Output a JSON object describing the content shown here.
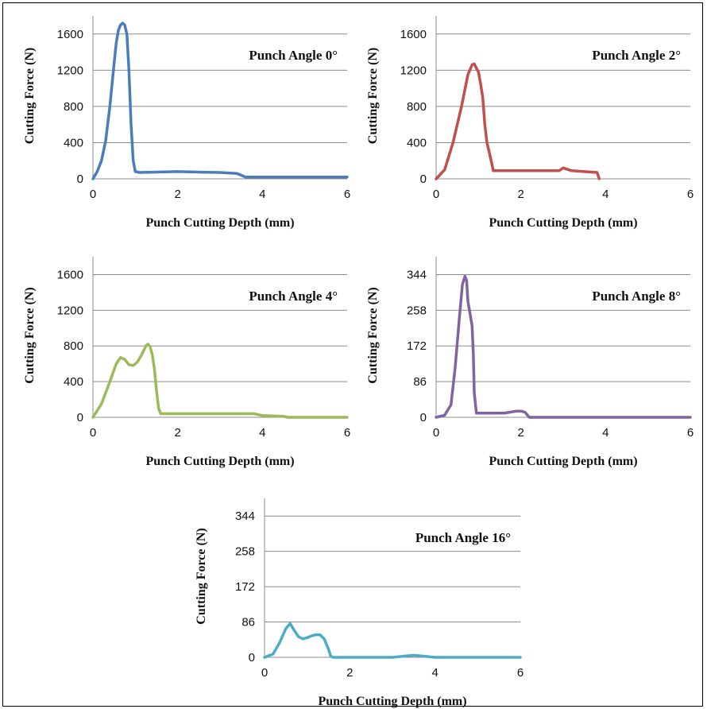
{
  "chart_data": [
    {
      "type": "line",
      "title": "Punch Angle 0°",
      "xlabel": "Punch Cutting Depth (mm)",
      "ylabel": "Cutting Force (N)",
      "xlim": [
        0,
        6
      ],
      "ylim": [
        0,
        1800
      ],
      "xticks": [
        0,
        2,
        4,
        6
      ],
      "yticks": [
        0,
        400,
        800,
        1200,
        1600
      ],
      "color": "#4a7ebb",
      "series": [
        {
          "x": [
            0,
            0.1,
            0.2,
            0.3,
            0.4,
            0.5,
            0.55,
            0.6,
            0.65,
            0.7,
            0.75,
            0.8,
            0.85,
            0.9,
            0.95,
            1.0,
            1.1,
            1.5,
            2.0,
            2.5,
            3.0,
            3.4,
            3.6,
            4.0,
            5.0,
            6.0
          ],
          "y": [
            0,
            80,
            200,
            420,
            800,
            1280,
            1500,
            1640,
            1700,
            1720,
            1700,
            1600,
            1200,
            600,
            200,
            80,
            70,
            75,
            80,
            75,
            70,
            60,
            20,
            20,
            20,
            20
          ]
        }
      ]
    },
    {
      "type": "line",
      "title": "Punch Angle 2°",
      "xlabel": "Punch Cutting Depth (mm)",
      "ylabel": "Cutting Force (N)",
      "xlim": [
        0,
        6
      ],
      "ylim": [
        0,
        1800
      ],
      "xticks": [
        0,
        2,
        4,
        6
      ],
      "yticks": [
        0,
        400,
        800,
        1200,
        1600
      ],
      "color": "#c0504d",
      "series": [
        {
          "x": [
            0,
            0.2,
            0.4,
            0.6,
            0.75,
            0.85,
            0.9,
            1.0,
            1.05,
            1.1,
            1.15,
            1.2,
            1.25,
            1.3,
            1.35,
            1.5,
            2.0,
            2.5,
            2.9,
            3.0,
            3.2,
            3.5,
            3.8,
            3.85
          ],
          "y": [
            0,
            100,
            400,
            800,
            1150,
            1260,
            1270,
            1180,
            1050,
            900,
            600,
            400,
            300,
            200,
            90,
            90,
            90,
            90,
            90,
            120,
            90,
            80,
            70,
            0
          ]
        }
      ]
    },
    {
      "type": "line",
      "title": "Punch Angle 4°",
      "xlabel": "Punch Cutting Depth (mm)",
      "ylabel": "Cutting Force (N)",
      "xlim": [
        0,
        6
      ],
      "ylim": [
        0,
        1800
      ],
      "xticks": [
        0,
        2,
        4,
        6
      ],
      "yticks": [
        0,
        400,
        800,
        1200,
        1600
      ],
      "color": "#9bbb59",
      "series": [
        {
          "x": [
            0,
            0.2,
            0.4,
            0.55,
            0.65,
            0.75,
            0.85,
            0.95,
            1.05,
            1.15,
            1.25,
            1.3,
            1.35,
            1.4,
            1.45,
            1.5,
            1.55,
            1.6,
            2.0,
            3.0,
            3.8,
            4.0,
            4.5,
            4.6,
            6.0
          ],
          "y": [
            0,
            150,
            400,
            600,
            670,
            650,
            590,
            580,
            620,
            700,
            800,
            820,
            790,
            700,
            550,
            300,
            100,
            40,
            40,
            40,
            40,
            20,
            10,
            0,
            0
          ]
        }
      ]
    },
    {
      "type": "line",
      "title": "Punch Angle 8°",
      "xlabel": "Punch Cutting Depth (mm)",
      "ylabel": "Cutting Force (N)",
      "xlim": [
        0,
        6
      ],
      "ylim": [
        0,
        387
      ],
      "xticks": [
        0,
        2,
        4,
        6
      ],
      "yticks": [
        0,
        86,
        172,
        258,
        344
      ],
      "color": "#8064a2",
      "series": [
        {
          "x": [
            0,
            0.2,
            0.35,
            0.45,
            0.55,
            0.62,
            0.68,
            0.72,
            0.75,
            0.8,
            0.85,
            0.88,
            0.9,
            0.95,
            1.0,
            1.2,
            1.6,
            1.9,
            2.0,
            2.1,
            2.2,
            6.0
          ],
          "y": [
            0,
            5,
            30,
            120,
            240,
            320,
            340,
            330,
            280,
            250,
            220,
            150,
            60,
            10,
            10,
            10,
            10,
            15,
            15,
            12,
            0,
            0
          ]
        }
      ]
    },
    {
      "type": "line",
      "title": "Punch Angle 16°",
      "xlabel": "Punch Cutting Depth (mm)",
      "ylabel": "Cutting Force (N)",
      "xlim": [
        0,
        6
      ],
      "ylim": [
        0,
        387
      ],
      "xticks": [
        0,
        2,
        4,
        6
      ],
      "yticks": [
        0,
        86,
        172,
        258,
        344
      ],
      "color": "#4bacc6",
      "series": [
        {
          "x": [
            0,
            0.2,
            0.35,
            0.5,
            0.6,
            0.7,
            0.8,
            0.9,
            1.0,
            1.1,
            1.2,
            1.3,
            1.4,
            1.5,
            1.55,
            1.6,
            2.0,
            3.0,
            3.3,
            3.5,
            3.7,
            4.0,
            6.0
          ],
          "y": [
            0,
            8,
            35,
            70,
            82,
            65,
            50,
            45,
            48,
            52,
            55,
            55,
            45,
            20,
            3,
            0,
            0,
            0,
            3,
            5,
            3,
            0,
            0
          ]
        }
      ]
    }
  ]
}
